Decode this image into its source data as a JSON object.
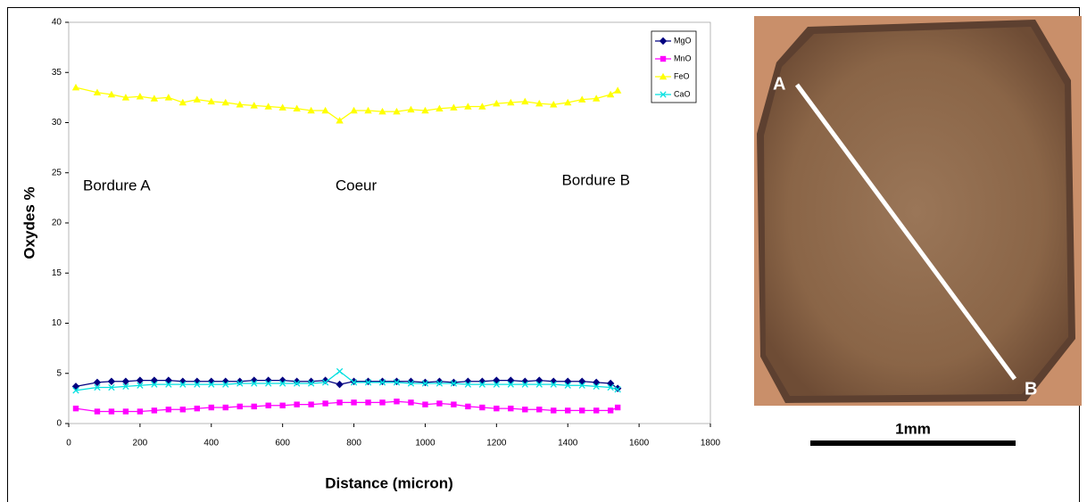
{
  "chart_data": {
    "type": "line",
    "xlabel": "Distance (micron)",
    "ylabel": "Oxydes %",
    "xlim": [
      0,
      1800
    ],
    "xticks": [
      0,
      200,
      400,
      600,
      800,
      1000,
      1200,
      1400,
      1600,
      1800
    ],
    "ylim": [
      0,
      40
    ],
    "yticks": [
      0,
      5,
      10,
      15,
      20,
      25,
      30,
      35,
      40
    ],
    "legend": "upper right",
    "annotations": [
      "Bordure A",
      "Coeur",
      "Bordure B"
    ],
    "x": [
      20,
      80,
      120,
      160,
      200,
      240,
      280,
      320,
      360,
      400,
      440,
      480,
      520,
      560,
      600,
      640,
      680,
      720,
      760,
      800,
      840,
      880,
      920,
      960,
      1000,
      1040,
      1080,
      1120,
      1160,
      1200,
      1240,
      1280,
      1320,
      1360,
      1400,
      1440,
      1480,
      1520,
      1540
    ],
    "series": [
      {
        "name": "MgO",
        "color": "#000080",
        "marker": "diamond",
        "values": [
          3.7,
          4.1,
          4.2,
          4.2,
          4.3,
          4.3,
          4.3,
          4.2,
          4.2,
          4.2,
          4.2,
          4.2,
          4.3,
          4.3,
          4.3,
          4.2,
          4.2,
          4.3,
          3.9,
          4.2,
          4.2,
          4.2,
          4.2,
          4.2,
          4.1,
          4.2,
          4.1,
          4.2,
          4.2,
          4.3,
          4.3,
          4.2,
          4.3,
          4.2,
          4.2,
          4.2,
          4.1,
          4.0,
          3.5
        ]
      },
      {
        "name": "MnO",
        "color": "#ff00ff",
        "marker": "square",
        "values": [
          1.5,
          1.2,
          1.2,
          1.2,
          1.2,
          1.3,
          1.4,
          1.4,
          1.5,
          1.6,
          1.6,
          1.7,
          1.7,
          1.8,
          1.8,
          1.9,
          1.9,
          2.0,
          2.1,
          2.1,
          2.1,
          2.1,
          2.2,
          2.1,
          1.9,
          2.0,
          1.9,
          1.7,
          1.6,
          1.5,
          1.5,
          1.4,
          1.4,
          1.3,
          1.3,
          1.3,
          1.3,
          1.3,
          1.6
        ]
      },
      {
        "name": "FeO",
        "color": "#ffff00",
        "marker": "triangle",
        "values": [
          33.5,
          33.0,
          32.8,
          32.5,
          32.6,
          32.4,
          32.5,
          32.0,
          32.3,
          32.1,
          32.0,
          31.8,
          31.7,
          31.6,
          31.5,
          31.4,
          31.2,
          31.2,
          30.2,
          31.2,
          31.2,
          31.1,
          31.1,
          31.3,
          31.2,
          31.4,
          31.5,
          31.6,
          31.6,
          31.9,
          32.0,
          32.1,
          31.9,
          31.8,
          32.0,
          32.3,
          32.4,
          32.8,
          33.2
        ]
      },
      {
        "name": "CaO",
        "color": "#00e0e0",
        "marker": "cross",
        "values": [
          3.3,
          3.6,
          3.6,
          3.7,
          3.8,
          3.9,
          3.9,
          3.9,
          3.9,
          3.9,
          3.9,
          4.0,
          4.0,
          4.0,
          4.0,
          4.0,
          4.0,
          4.1,
          5.2,
          4.1,
          4.1,
          4.1,
          4.1,
          4.0,
          4.0,
          4.0,
          4.0,
          3.9,
          3.9,
          3.9,
          3.9,
          3.9,
          3.9,
          3.9,
          3.8,
          3.8,
          3.7,
          3.6,
          3.4
        ]
      }
    ]
  },
  "photo": {
    "point_a": "A",
    "point_b": "B",
    "scale_label": "1mm"
  }
}
